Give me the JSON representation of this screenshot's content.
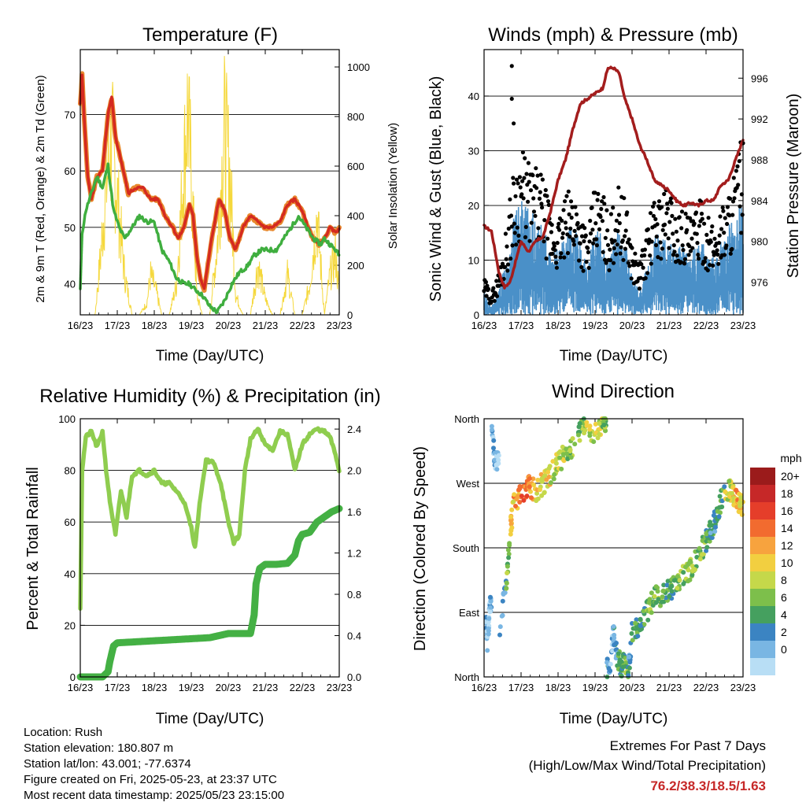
{
  "info": {
    "location": "Location: Rush",
    "elevation": "Station elevation: 180.807 m",
    "latlon": "Station lat/lon: 43.001; -77.6374",
    "created": "Figure created on Fri, 2025-05-23, at 23:37 UTC",
    "recent": "Most recent data timestamp: 2025/05/23 23:15:00"
  },
  "extremes": {
    "title": "Extremes For Past 7 Days",
    "subtitle": "(High/Low/Max Wind/Total Precipitation)",
    "values": "76.2/38.3/18.5/1.63"
  },
  "colors": {
    "temp9m": "#e8892e",
    "temp2m": "#d42a20",
    "dewpoint": "#3fae3f",
    "solar": "#f5d83c",
    "gust": "#000000",
    "wind": "#4a90c8",
    "pressure": "#a31d1d",
    "rh": "#8fcd4f",
    "precip": "#44b044"
  },
  "chart_data": [
    {
      "type": "line",
      "title": "Temperature (F)",
      "xlabel": "Time (Day/UTC)",
      "ylabel": "2m & 9m T (Red, Orange) & 2m Td (Green)",
      "ylabel_right": "Solar Insolation (Yellow)",
      "xticks": [
        "16/23",
        "17/23",
        "18/23",
        "19/23",
        "20/23",
        "21/23",
        "22/23",
        "23/23"
      ],
      "xlim": [
        0,
        7
      ],
      "ylim": [
        34.5,
        81.5
      ],
      "yticks": [
        40,
        50,
        60,
        70
      ],
      "ylim_right": [
        0,
        1070
      ],
      "yticks_right": [
        0,
        200,
        400,
        600,
        800,
        1000
      ],
      "grid": true,
      "series": [
        {
          "role": "t2m",
          "x": [
            0,
            0.05,
            0.1,
            0.2,
            0.3,
            0.45,
            0.6,
            0.75,
            0.85,
            0.95,
            1.1,
            1.3,
            1.5,
            1.7,
            1.9,
            2.1,
            2.3,
            2.5,
            2.65,
            2.8,
            2.95,
            3.05,
            3.15,
            3.25,
            3.35,
            3.55,
            3.75,
            3.9,
            4.05,
            4.2,
            4.4,
            4.6,
            4.8,
            5.0,
            5.2,
            5.4,
            5.6,
            5.8,
            6.0,
            6.15,
            6.3,
            6.45,
            6.6,
            6.75,
            6.9,
            7.0
          ],
          "y": [
            72,
            77,
            70,
            59,
            55,
            59,
            60,
            70,
            73,
            66,
            62,
            56,
            57,
            57,
            55,
            55,
            52,
            50,
            48,
            50,
            54,
            52,
            45,
            41,
            39,
            48,
            55,
            53,
            48,
            46,
            50,
            52,
            51,
            50,
            50,
            51,
            54,
            55,
            53,
            50,
            48,
            47,
            48,
            50,
            49,
            50
          ]
        },
        {
          "role": "dewpt",
          "x": [
            0,
            0.05,
            0.15,
            0.3,
            0.45,
            0.6,
            0.75,
            0.9,
            1.05,
            1.2,
            1.4,
            1.6,
            1.8,
            2.0,
            2.2,
            2.4,
            2.6,
            2.8,
            2.95,
            3.1,
            3.3,
            3.5,
            3.7,
            3.9,
            4.1,
            4.3,
            4.5,
            4.7,
            4.9,
            5.1,
            5.3,
            5.5,
            5.7,
            5.9,
            6.1,
            6.3,
            6.5,
            6.6,
            6.75,
            6.9,
            7.0
          ],
          "y": [
            39,
            49,
            53,
            56,
            59,
            57,
            61,
            53,
            50,
            48,
            50,
            52,
            51,
            51,
            46,
            44,
            41,
            40,
            40,
            39,
            38,
            36,
            35,
            37,
            40,
            42,
            43,
            45,
            46,
            46,
            46,
            48,
            50,
            52,
            50,
            48,
            47,
            48,
            47,
            46,
            45
          ]
        },
        {
          "role": "solar",
          "x": [
            0,
            0.4,
            0.55,
            0.7,
            0.85,
            1.0,
            1.2,
            1.4,
            1.6,
            1.8,
            1.9,
            2.05,
            2.2,
            2.4,
            2.6,
            2.75,
            2.9,
            3.0,
            3.15,
            3.3,
            3.5,
            3.7,
            3.9,
            4.05,
            4.2,
            4.4,
            4.6,
            4.8,
            5.0,
            5.2,
            5.4,
            5.6,
            5.8,
            6.0,
            6.2,
            6.4,
            6.6,
            6.75,
            6.9,
            7.0
          ],
          "y": [
            0,
            0,
            300,
            650,
            880,
            600,
            200,
            0,
            0,
            60,
            200,
            120,
            0,
            0,
            150,
            600,
            1030,
            700,
            100,
            0,
            0,
            350,
            940,
            700,
            100,
            0,
            0,
            250,
            80,
            0,
            0,
            200,
            0,
            0,
            150,
            500,
            0,
            200,
            300,
            100
          ]
        }
      ]
    },
    {
      "type": "scatter",
      "title": "Winds (mph) & Pressure (mb)",
      "xlabel": "Time (Day/UTC)",
      "ylabel": "Sonic Wind & Gust (Blue, Black)",
      "ylabel_right": "Station Pressure (Maroon)",
      "xticks": [
        "16/23",
        "17/23",
        "18/23",
        "19/23",
        "20/23",
        "21/23",
        "22/23",
        "23/23"
      ],
      "xlim": [
        0,
        7
      ],
      "ylim": [
        0,
        48.5
      ],
      "yticks": [
        0,
        10,
        20,
        30,
        40
      ],
      "ylim_right": [
        972.8,
        998.8
      ],
      "yticks_right": [
        976,
        980,
        984,
        988,
        992,
        996
      ],
      "grid": true,
      "series": [
        {
          "role": "gust",
          "x": [
            0,
            0.2,
            0.4,
            0.6,
            0.8,
            1.0,
            1.2,
            1.4,
            1.6,
            1.8,
            2.0,
            2.2,
            2.4,
            2.6,
            2.8,
            3.0,
            3.2,
            3.4,
            3.6,
            3.8,
            4.0,
            4.2,
            4.4,
            4.6,
            4.8,
            5.0,
            5.2,
            5.4,
            5.6,
            5.8,
            6.0,
            6.2,
            6.4,
            6.6,
            6.8,
            7.0
          ],
          "y": [
            5,
            3,
            6,
            12,
            20,
            23,
            21,
            20,
            19,
            14,
            13,
            16,
            18,
            15,
            11,
            18,
            17,
            13,
            18,
            16,
            10,
            7,
            12,
            16,
            17,
            18,
            14,
            15,
            13,
            16,
            14,
            12,
            15,
            17,
            21,
            25
          ]
        },
        {
          "role": "wind",
          "x": [
            0,
            0.2,
            0.4,
            0.6,
            0.8,
            1.0,
            1.2,
            1.4,
            1.6,
            1.8,
            2.0,
            2.2,
            2.4,
            2.6,
            2.8,
            3.0,
            3.2,
            3.4,
            3.6,
            3.8,
            4.0,
            4.2,
            4.4,
            4.6,
            4.8,
            5.0,
            5.2,
            5.4,
            5.6,
            5.8,
            6.0,
            6.2,
            6.4,
            6.6,
            6.8,
            7.0
          ],
          "y": [
            3,
            1,
            3,
            7,
            12,
            14,
            13,
            12,
            11,
            8,
            8,
            10,
            11,
            9,
            6,
            11,
            10,
            7,
            11,
            9,
            5,
            3,
            6,
            10,
            10,
            11,
            8,
            9,
            7,
            10,
            8,
            7,
            9,
            11,
            13,
            15
          ]
        },
        {
          "role": "pressure",
          "x": [
            0,
            0.2,
            0.4,
            0.55,
            0.7,
            0.85,
            1.0,
            1.2,
            1.4,
            1.6,
            1.8,
            2.0,
            2.2,
            2.4,
            2.6,
            2.8,
            3.0,
            3.2,
            3.35,
            3.5,
            3.65,
            3.8,
            4.0,
            4.2,
            4.4,
            4.6,
            4.8,
            5.0,
            5.2,
            5.4,
            5.6,
            5.8,
            6.0,
            6.2,
            6.4,
            6.6,
            6.8,
            7.0
          ],
          "y": [
            981.5,
            981,
            977,
            975.5,
            976,
            978,
            980,
            979,
            980,
            980.5,
            983,
            986,
            988,
            991,
            993.5,
            994,
            994.5,
            995,
            997,
            997,
            996.5,
            994,
            992,
            989.5,
            988,
            986,
            985.5,
            985,
            984,
            983.5,
            983.8,
            983.5,
            984,
            984,
            985.5,
            986,
            988,
            990
          ]
        }
      ]
    },
    {
      "type": "line",
      "title": "Relative Humidity (%) & Precipitation (in)",
      "xlabel": "Time (Day/UTC)",
      "ylabel": "Percent & Total Rainfall",
      "xticks": [
        "16/23",
        "17/23",
        "18/23",
        "19/23",
        "20/23",
        "21/23",
        "22/23",
        "23/23"
      ],
      "xlim": [
        0,
        7
      ],
      "ylim": [
        0,
        100
      ],
      "yticks": [
        0,
        20,
        40,
        60,
        80,
        100
      ],
      "ylim_right": [
        0,
        2.5
      ],
      "yticks_right": [
        "0.0",
        "0.4",
        "0.8",
        "1.2",
        "1.6",
        "2.0",
        "2.4"
      ],
      "grid": true,
      "series": [
        {
          "role": "rh",
          "x": [
            0,
            0.05,
            0.15,
            0.3,
            0.45,
            0.6,
            0.7,
            0.8,
            0.95,
            1.1,
            1.25,
            1.4,
            1.6,
            1.8,
            2.0,
            2.2,
            2.4,
            2.6,
            2.8,
            3.0,
            3.1,
            3.25,
            3.4,
            3.6,
            3.8,
            4.0,
            4.15,
            4.3,
            4.45,
            4.6,
            4.8,
            5.0,
            5.2,
            5.4,
            5.6,
            5.8,
            6.0,
            6.2,
            6.4,
            6.6,
            6.75,
            6.9,
            7.0
          ],
          "y": [
            27,
            80,
            93,
            95,
            89,
            95,
            80,
            68,
            55,
            72,
            62,
            78,
            80,
            78,
            80,
            75,
            75,
            72,
            68,
            58,
            50,
            70,
            84,
            83,
            75,
            60,
            52,
            55,
            80,
            92,
            96,
            90,
            88,
            95,
            94,
            80,
            90,
            94,
            96,
            95,
            93,
            86,
            80
          ]
        },
        {
          "role": "precip",
          "x": [
            0,
            0.3,
            0.6,
            0.75,
            0.8,
            0.9,
            1.0,
            1.5,
            2.0,
            2.5,
            3.0,
            3.5,
            4.0,
            4.3,
            4.6,
            4.7,
            4.75,
            4.85,
            5.0,
            5.3,
            5.6,
            5.8,
            5.9,
            6.0,
            6.2,
            6.4,
            6.6,
            6.8,
            7.0
          ],
          "y": [
            0,
            0,
            0,
            0.05,
            0.15,
            0.3,
            0.33,
            0.34,
            0.35,
            0.36,
            0.37,
            0.38,
            0.42,
            0.42,
            0.42,
            0.6,
            0.9,
            1.05,
            1.09,
            1.09,
            1.1,
            1.18,
            1.32,
            1.38,
            1.4,
            1.5,
            1.55,
            1.6,
            1.63
          ]
        }
      ]
    },
    {
      "type": "scatter",
      "title": "Wind Direction",
      "xlabel": "Time (Day/UTC)",
      "ylabel": "Direction (Colored By Speed)",
      "xticks": [
        "16/23",
        "17/23",
        "18/23",
        "19/23",
        "20/23",
        "21/23",
        "22/23",
        "23/23"
      ],
      "xlim": [
        0,
        7
      ],
      "ylim": [
        0,
        360
      ],
      "ytick_labels": [
        "North",
        "East",
        "South",
        "West",
        "North"
      ],
      "yticks": [
        0,
        90,
        180,
        270,
        360
      ],
      "legend_title": "mph",
      "legend_labels": [
        "20+",
        "18",
        "16",
        "14",
        "12",
        "10",
        "8",
        "6",
        "4",
        "2",
        "0"
      ],
      "legend_colors": [
        "#9b1b1b",
        "#c62828",
        "#e53e2a",
        "#f26b2f",
        "#f7a33e",
        "#f2cf40",
        "#c5d84a",
        "#7dbf4b",
        "#45a05f",
        "#3b84c2",
        "#79b6e3",
        "#b8def5"
      ],
      "legend_position": "right",
      "series": [
        {
          "role": "direction",
          "x": [
            0.05,
            0.1,
            0.15,
            0.2,
            0.3,
            0.4,
            0.6,
            0.7,
            0.8,
            1.0,
            1.2,
            1.4,
            1.6,
            1.8,
            2.0,
            2.2,
            2.5,
            2.7,
            3.0,
            3.2,
            3.3,
            3.4,
            3.5,
            3.6,
            3.7,
            3.8,
            3.9,
            4.0,
            4.2,
            4.4,
            4.6,
            4.8,
            5.0,
            5.2,
            5.4,
            5.6,
            5.8,
            6.0,
            6.1,
            6.2,
            6.3,
            6.5,
            6.7,
            6.8,
            6.9,
            7.0
          ],
          "y": [
            80,
            40,
            100,
            350,
            300,
            60,
            130,
            200,
            240,
            255,
            265,
            260,
            270,
            280,
            300,
            310,
            330,
            350,
            340,
            355,
            10,
            20,
            60,
            30,
            15,
            20,
            10,
            60,
            70,
            90,
            110,
            115,
            120,
            130,
            145,
            150,
            170,
            190,
            200,
            210,
            230,
            260,
            260,
            250,
            240,
            240
          ],
          "speed": [
            2,
            1,
            2,
            2,
            1,
            3,
            8,
            12,
            14,
            16,
            14,
            12,
            12,
            10,
            10,
            8,
            8,
            10,
            10,
            8,
            3,
            2,
            3,
            5,
            6,
            8,
            4,
            6,
            6,
            8,
            8,
            6,
            6,
            8,
            8,
            8,
            8,
            6,
            5,
            4,
            6,
            10,
            12,
            14,
            12,
            10
          ]
        }
      ]
    }
  ]
}
